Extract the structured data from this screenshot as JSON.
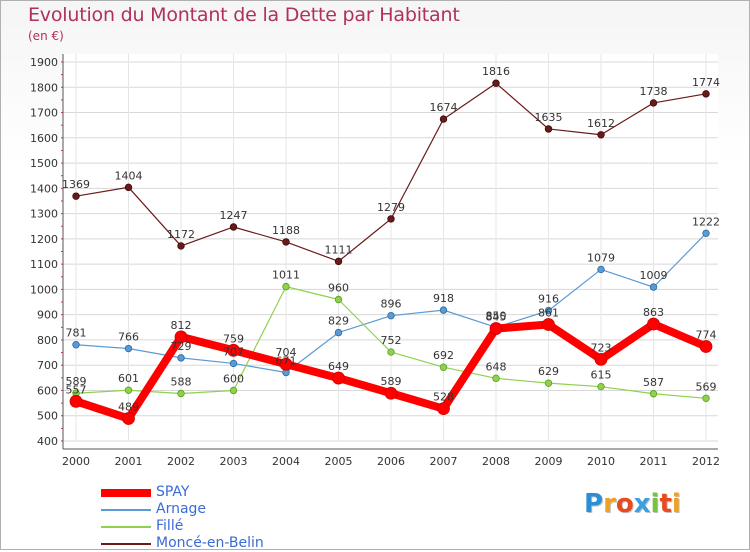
{
  "title": "Evolution du Montant de la Dette par Habitant",
  "subtitle": "(en €)",
  "logo": {
    "letters": [
      "P",
      "r",
      "o",
      "x",
      "i",
      "t",
      "i"
    ],
    "colors": [
      "#2b8fd6",
      "#f2a020",
      "#e84a20",
      "#3aa0e0",
      "#7ac143",
      "#e84a20",
      "#f2a020"
    ]
  },
  "chart_data": {
    "type": "line",
    "x": [
      "2000",
      "2001",
      "2002",
      "2003",
      "2004",
      "2005",
      "2006",
      "2007",
      "2008",
      "2009",
      "2010",
      "2011",
      "2012"
    ],
    "ylim": [
      400,
      1900
    ],
    "yticks": [
      "400",
      "500",
      "600",
      "700",
      "800",
      "900",
      "1000",
      "1100",
      "1200",
      "1300",
      "1400",
      "1500",
      "1600",
      "1700",
      "1800",
      "1900"
    ],
    "grid": true,
    "legend_position": "bottom-left",
    "series": [
      {
        "name": "SPAY",
        "color": "#ff0000",
        "values": [
          557,
          489,
          812,
          759,
          704,
          649,
          589,
          528,
          845,
          861,
          723,
          863,
          774
        ],
        "labels": [
          "557",
          "489",
          "812",
          "759",
          "704",
          "649",
          "589",
          "528",
          "845",
          "861",
          "723",
          "863",
          "774"
        ]
      },
      {
        "name": "Arnage",
        "color": "#5b9bd5",
        "values": [
          781,
          766,
          729,
          707,
          671,
          829,
          896,
          918,
          850,
          916,
          1079,
          1009,
          1222
        ],
        "labels": [
          "781",
          "766",
          "729",
          "707",
          "671",
          "829",
          "896",
          "918",
          "850",
          "916",
          "1079",
          "1009",
          "1222"
        ]
      },
      {
        "name": "Fillé",
        "color": "#8fd14f",
        "values": [
          589,
          601,
          588,
          600,
          1011,
          960,
          752,
          692,
          648,
          629,
          615,
          587,
          569
        ],
        "labels": [
          "589",
          "601",
          "588",
          "600",
          "1011",
          "960",
          "752",
          "692",
          "648",
          "629",
          "615",
          "587",
          "569"
        ]
      },
      {
        "name": "Moncé-en-Belin",
        "color": "#6b1a1a",
        "values": [
          1369,
          1404,
          1172,
          1247,
          1188,
          1111,
          1279,
          1674,
          1816,
          1635,
          1612,
          1738,
          1774
        ],
        "labels": [
          "1369",
          "1404",
          "1172",
          "1247",
          "1188",
          "1111",
          "1279",
          "1674",
          "1816",
          "1635",
          "1612",
          "1738",
          "1774"
        ]
      }
    ]
  }
}
